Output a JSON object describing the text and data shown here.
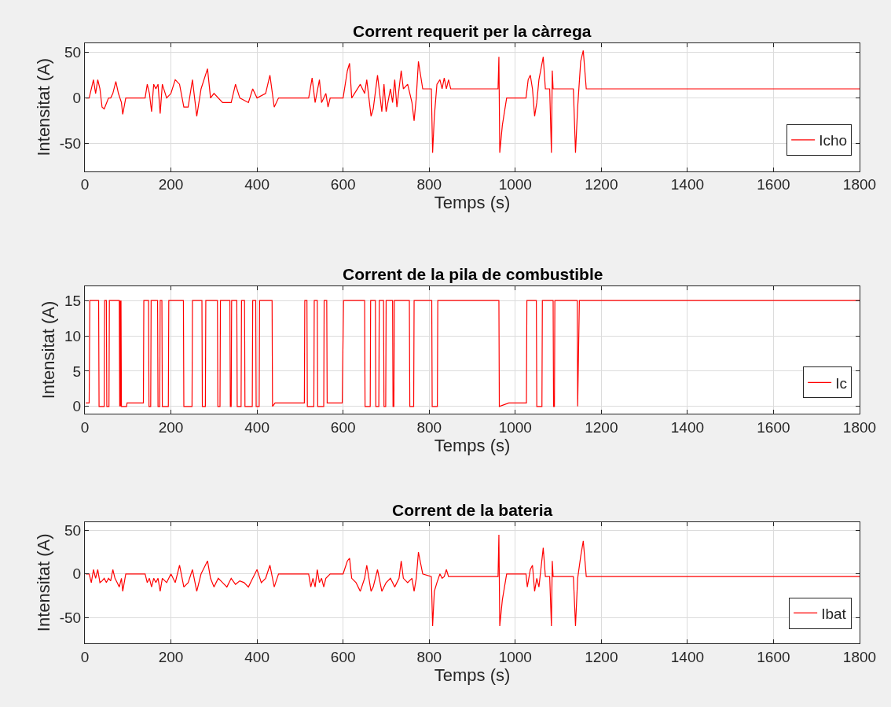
{
  "chart_data": [
    {
      "type": "line",
      "title": "Corrent requerit per la càrrega",
      "xlabel": "Temps (s)",
      "ylabel": "Intensitat (A)",
      "xlim": [
        0,
        1800
      ],
      "xticks": [
        0,
        200,
        400,
        600,
        800,
        1000,
        1200,
        1400,
        1600,
        1800
      ],
      "ylim": [
        -80,
        60
      ],
      "yticks": [
        -50,
        0,
        50
      ],
      "grid": true,
      "legend": "bottom right",
      "series": [
        {
          "name": "Icho",
          "color": "#ff0000",
          "x": [
            2,
            10,
            20,
            25,
            30,
            35,
            40,
            45,
            55,
            60,
            65,
            72,
            78,
            85,
            88,
            95,
            140,
            145,
            150,
            155,
            160,
            165,
            170,
            175,
            180,
            190,
            200,
            210,
            220,
            230,
            240,
            250,
            260,
            270,
            285,
            292,
            300,
            320,
            340,
            350,
            360,
            380,
            390,
            400,
            420,
            430,
            440,
            450,
            520,
            528,
            535,
            545,
            550,
            560,
            565,
            570,
            600,
            610,
            615,
            620,
            640,
            650,
            655,
            665,
            670,
            680,
            690,
            695,
            700,
            710,
            715,
            720,
            725,
            730,
            735,
            740,
            750,
            760,
            765,
            770,
            775,
            785,
            805,
            808,
            812,
            818,
            825,
            830,
            835,
            840,
            845,
            850,
            960,
            962,
            964,
            970,
            980,
            1025,
            1030,
            1035,
            1040,
            1045,
            1050,
            1055,
            1065,
            1070,
            1080,
            1084,
            1086,
            1088,
            1092,
            1135,
            1140,
            1145,
            1152,
            1158,
            1165,
            1800
          ],
          "values": [
            0,
            0,
            20,
            5,
            20,
            10,
            -10,
            -12,
            0,
            0,
            5,
            18,
            5,
            -5,
            -18,
            0,
            0,
            15,
            5,
            -15,
            15,
            10,
            15,
            -17,
            15,
            0,
            5,
            20,
            15,
            -10,
            -10,
            20,
            -20,
            10,
            32,
            0,
            5,
            -5,
            -5,
            15,
            0,
            -5,
            10,
            0,
            5,
            25,
            -10,
            0,
            0,
            22,
            -5,
            20,
            -5,
            5,
            -10,
            0,
            0,
            30,
            38,
            0,
            15,
            5,
            20,
            -20,
            -12,
            25,
            -15,
            15,
            -15,
            10,
            -5,
            20,
            -10,
            10,
            30,
            10,
            15,
            -5,
            -25,
            0,
            40,
            10,
            10,
            -60,
            -20,
            15,
            20,
            10,
            22,
            10,
            20,
            10,
            10,
            45,
            -60,
            -30,
            0,
            0,
            20,
            25,
            10,
            -20,
            -5,
            20,
            45,
            10,
            10,
            -60,
            30,
            10,
            10,
            10,
            -60,
            -10,
            40,
            52,
            10,
            10
          ]
        }
      ]
    },
    {
      "type": "line",
      "title": "Corrent de la pila de combustible",
      "xlabel": "Temps (s)",
      "ylabel": "Intensitat (A)",
      "xlim": [
        0,
        1800
      ],
      "xticks": [
        0,
        200,
        400,
        600,
        800,
        1000,
        1200,
        1400,
        1600,
        1800
      ],
      "ylim": [
        -1,
        17
      ],
      "yticks": [
        0,
        5,
        10,
        15
      ],
      "grid": true,
      "legend": "bottom right",
      "series": [
        {
          "name": "Ic",
          "color": "#ff0000",
          "x": [
            2,
            10,
            11.5,
            32,
            33,
            45,
            46,
            50,
            51,
            56,
            57,
            80,
            81,
            82,
            83,
            84,
            85,
            97,
            98,
            136,
            137,
            148,
            149,
            153,
            154,
            169,
            170,
            174,
            175,
            179,
            180,
            194,
            195,
            229,
            230,
            249,
            250,
            272,
            273,
            280,
            281,
            308,
            309,
            314,
            315,
            337,
            338,
            340,
            341,
            353,
            354,
            363,
            364,
            371,
            372,
            389,
            390,
            397,
            398,
            405,
            406,
            435,
            436,
            442,
            510,
            511,
            516,
            517,
            532,
            533,
            540,
            541,
            555,
            556,
            562,
            563,
            569,
            598,
            601,
            602,
            650,
            651,
            663,
            664,
            675,
            676,
            683,
            684,
            694,
            695,
            699,
            700,
            715,
            716,
            718,
            719,
            754,
            755,
            764,
            765,
            806,
            807,
            819,
            820,
            962,
            963,
            985,
            1026,
            1027,
            1049,
            1050,
            1062,
            1063,
            1088,
            1089,
            1091,
            1092,
            1144,
            1145,
            1149,
            1800
          ],
          "values": [
            0.5,
            0.5,
            15,
            15,
            0,
            0,
            15,
            15,
            0,
            0,
            15,
            15,
            0,
            15,
            0,
            15,
            0,
            0,
            0.5,
            0.5,
            15,
            15,
            0,
            0,
            15,
            15,
            0,
            0,
            15,
            15,
            0,
            0,
            15,
            15,
            0,
            0,
            15,
            15,
            0,
            0,
            15,
            15,
            0,
            0,
            15,
            15,
            0,
            0,
            15,
            15,
            0,
            0,
            15,
            15,
            0,
            0,
            15,
            15,
            0,
            0,
            15,
            15,
            0,
            0.5,
            0.5,
            15,
            15,
            0,
            0,
            15,
            15,
            0,
            0,
            15,
            15,
            0.5,
            0.5,
            0.5,
            15,
            15,
            15,
            0,
            0,
            15,
            15,
            0,
            0,
            15,
            15,
            0,
            0,
            15,
            15,
            0,
            0,
            15,
            15,
            0,
            0,
            15,
            15,
            0,
            0,
            15,
            15,
            0,
            0.5,
            0.5,
            15,
            15,
            0,
            0,
            15,
            15,
            0,
            0,
            15,
            15,
            0,
            15,
            15
          ]
        }
      ]
    },
    {
      "type": "line",
      "title": "Corrent de la bateria",
      "xlabel": "Temps (s)",
      "ylabel": "Intensitat (A)",
      "xlim": [
        0,
        1800
      ],
      "xticks": [
        0,
        200,
        400,
        600,
        800,
        1000,
        1200,
        1400,
        1600,
        1800
      ],
      "ylim": [
        -80,
        60
      ],
      "yticks": [
        -50,
        0,
        50
      ],
      "grid": true,
      "legend": "bottom right",
      "series": [
        {
          "name": "Ibat",
          "color": "#ff0000",
          "x": [
            2,
            10,
            15,
            20,
            25,
            30,
            35,
            40,
            45,
            50,
            55,
            60,
            65,
            70,
            75,
            80,
            85,
            88,
            95,
            140,
            145,
            150,
            155,
            160,
            165,
            170,
            175,
            180,
            190,
            200,
            210,
            220,
            230,
            240,
            250,
            260,
            270,
            285,
            292,
            300,
            310,
            320,
            330,
            340,
            350,
            360,
            370,
            380,
            390,
            400,
            410,
            420,
            430,
            440,
            450,
            520,
            525,
            530,
            535,
            540,
            545,
            550,
            555,
            560,
            570,
            600,
            610,
            615,
            620,
            630,
            640,
            650,
            655,
            665,
            670,
            680,
            690,
            700,
            710,
            720,
            730,
            735,
            740,
            750,
            760,
            765,
            770,
            775,
            785,
            805,
            808,
            812,
            818,
            825,
            830,
            835,
            840,
            845,
            850,
            960,
            962,
            964,
            970,
            980,
            1025,
            1028,
            1035,
            1040,
            1045,
            1050,
            1055,
            1065,
            1070,
            1080,
            1084,
            1086,
            1088,
            1092,
            1135,
            1140,
            1145,
            1152,
            1158,
            1165,
            1800
          ],
          "values": [
            0,
            0,
            -10,
            5,
            -5,
            5,
            -10,
            -8,
            -5,
            -10,
            -5,
            -8,
            5,
            -5,
            -10,
            -15,
            -5,
            -20,
            0,
            0,
            -10,
            -5,
            -15,
            -5,
            -10,
            -5,
            -20,
            -5,
            -10,
            0,
            -10,
            10,
            -15,
            -10,
            5,
            -20,
            0,
            15,
            -5,
            -15,
            -5,
            -10,
            -15,
            -5,
            -12,
            -8,
            -10,
            -15,
            -5,
            5,
            -10,
            -5,
            10,
            -15,
            0,
            0,
            -15,
            -5,
            -15,
            5,
            -10,
            -5,
            -15,
            -5,
            0,
            0,
            15,
            18,
            -5,
            -10,
            -20,
            -5,
            10,
            -20,
            -15,
            5,
            -20,
            -10,
            -5,
            -15,
            -5,
            15,
            -5,
            -10,
            -5,
            -20,
            -5,
            25,
            0,
            -3,
            -60,
            -20,
            -10,
            0,
            -5,
            -3,
            5,
            -3,
            -3,
            -3,
            45,
            -60,
            -30,
            0,
            0,
            -15,
            5,
            10,
            -20,
            -5,
            -15,
            30,
            -3,
            -3,
            -60,
            15,
            -3,
            -3,
            -3,
            -60,
            -5,
            20,
            38,
            -3,
            -3
          ]
        }
      ]
    }
  ]
}
